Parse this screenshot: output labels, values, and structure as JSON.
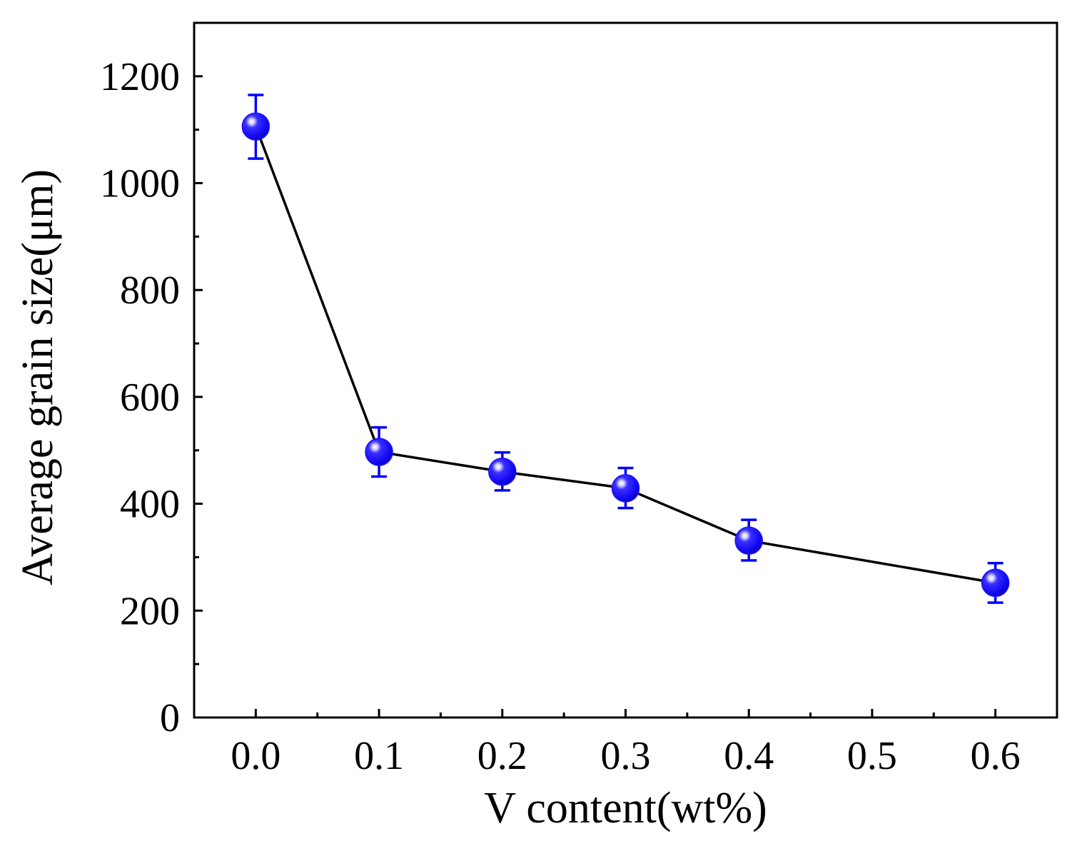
{
  "chart_data": {
    "type": "line",
    "title": "",
    "xlabel": "V content(wt%)",
    "ylabel": "Average grain size(μm)",
    "xlim": [
      -0.05,
      0.65
    ],
    "ylim": [
      0,
      1300
    ],
    "x_ticks": [
      0.0,
      0.1,
      0.2,
      0.3,
      0.4,
      0.5,
      0.6
    ],
    "x_tick_labels": [
      "0.0",
      "0.1",
      "0.2",
      "0.3",
      "0.4",
      "0.5",
      "0.6"
    ],
    "x_minor_ticks": [
      0.05,
      0.15,
      0.25,
      0.35,
      0.45,
      0.55
    ],
    "y_ticks": [
      0,
      200,
      400,
      600,
      800,
      1000,
      1200
    ],
    "y_tick_labels": [
      "0",
      "200",
      "400",
      "600",
      "800",
      "1000",
      "1200"
    ],
    "y_minor_ticks": [
      100,
      300,
      500,
      700,
      900,
      1100
    ],
    "grid": false,
    "series": [
      {
        "name": "Average grain size",
        "x": [
          0.0,
          0.1,
          0.2,
          0.3,
          0.4,
          0.6
        ],
        "y": [
          1106,
          497,
          460,
          429,
          331,
          252
        ],
        "err_low": [
          1046,
          451,
          425,
          392,
          294,
          215
        ],
        "err_high": [
          1165,
          543,
          496,
          467,
          370,
          289
        ],
        "line_color": "#000000",
        "marker_color": "#1a10ff",
        "errorbar_color": "#0000ff"
      }
    ]
  }
}
